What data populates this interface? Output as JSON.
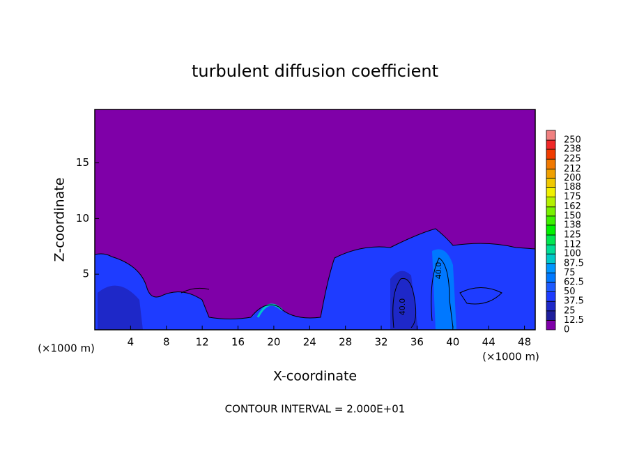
{
  "chart_data": {
    "type": "contour",
    "title": "turbulent diffusion coefficient",
    "xlabel": "X-coordinate",
    "ylabel": "Z-coordinate",
    "x_unit": "(×1000 m)",
    "x_unit_right": "(×1000 m)",
    "footer": "CONTOUR INTERVAL = 2.000E+01",
    "xlim": [
      0,
      49.2
    ],
    "ylim": [
      0,
      19.8
    ],
    "xticks": [
      4,
      8,
      12,
      16,
      20,
      24,
      28,
      32,
      36,
      40,
      44,
      48
    ],
    "yticks": [
      5,
      10,
      15
    ],
    "contour_labels": [
      "40.0",
      "40.0"
    ],
    "levels": [
      0,
      12.5,
      25,
      37.5,
      50,
      62.5,
      75,
      87.5,
      100,
      112,
      125,
      138,
      150,
      162,
      175,
      188,
      200,
      212,
      225,
      238,
      250
    ],
    "colors": [
      "#7f00a8",
      "#1e1e9c",
      "#1e28c8",
      "#1e3cff",
      "#1e5aff",
      "#0078ff",
      "#0096ff",
      "#00c8c8",
      "#00dc96",
      "#00e650",
      "#00f000",
      "#3cf000",
      "#78f000",
      "#b4f000",
      "#f0f000",
      "#f0c800",
      "#f0a000",
      "#f07800",
      "#f03c00",
      "#f02828",
      "#f08080"
    ]
  }
}
